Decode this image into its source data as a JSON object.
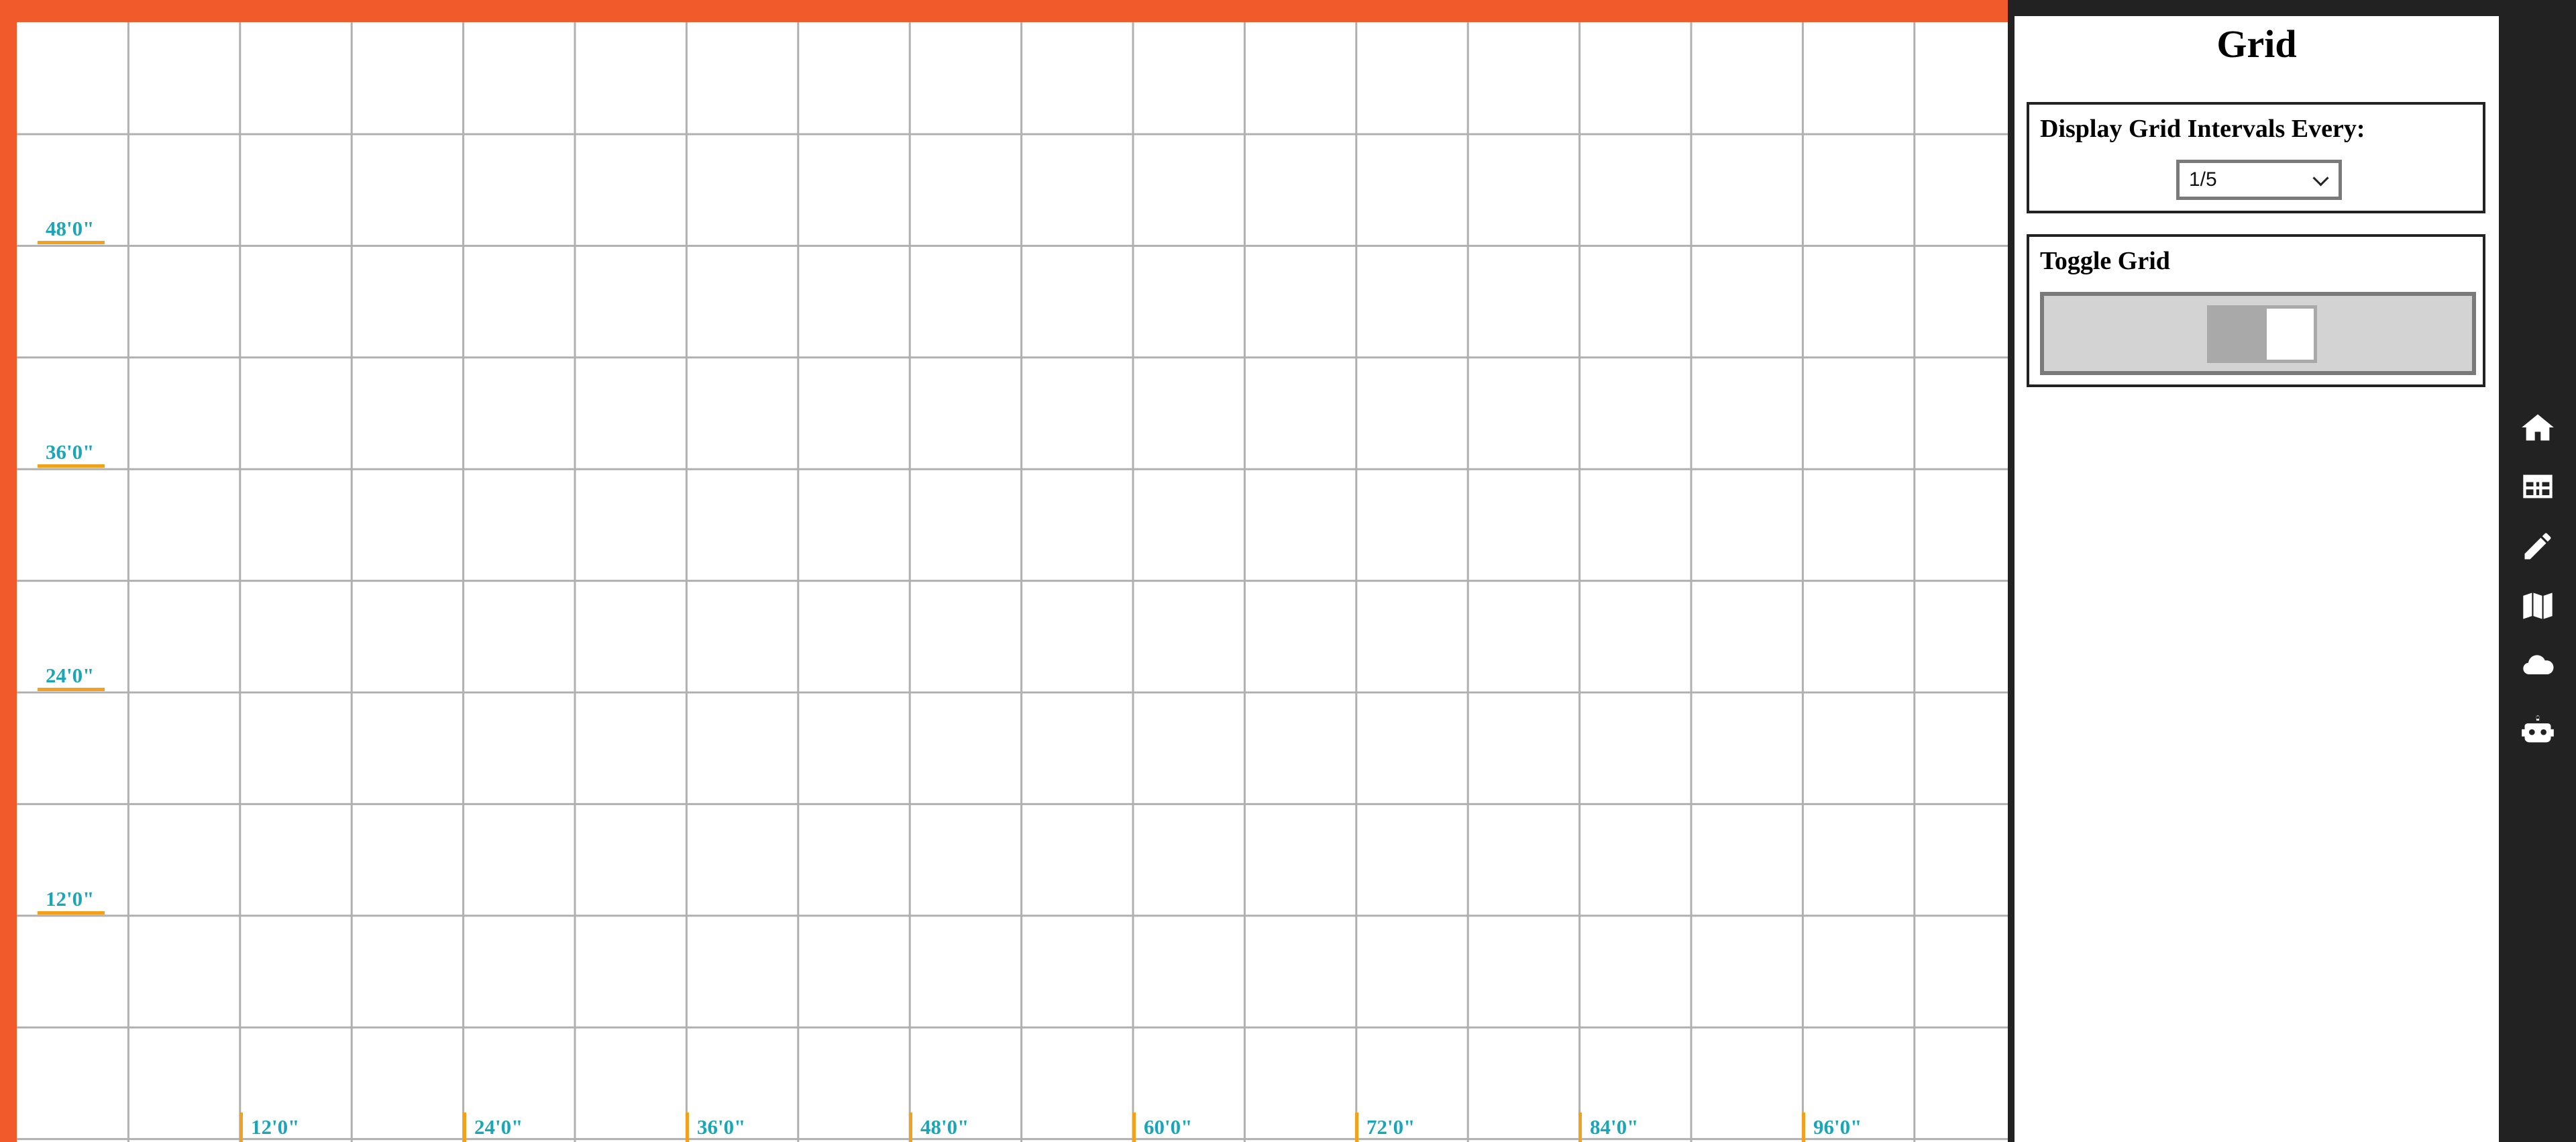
{
  "grid": {
    "vertical_labels": [
      "48'0\"",
      "36'0\"",
      "24'0\"",
      "12'0\""
    ],
    "horizontal_labels": [
      "12'0\"",
      "24'0\"",
      "36'0\"",
      "48'0\"",
      "60'0\"",
      "72'0\"",
      "84'0\"",
      "96'0\""
    ]
  },
  "panel": {
    "title": "Grid",
    "interval": {
      "label": "Display Grid Intervals Every:",
      "selected": "1/5"
    },
    "toggle": {
      "label": "Toggle Grid",
      "state": "on"
    }
  },
  "rail": {
    "icons": [
      "home-icon",
      "table-icon",
      "pencil-icon",
      "map-icon",
      "cloud-icon",
      "robot-icon"
    ]
  },
  "colors": {
    "accent_orange": "#f15a2b",
    "label_teal": "#1aa6b7",
    "marker_amber": "#f2a11e",
    "dark": "#222222"
  }
}
